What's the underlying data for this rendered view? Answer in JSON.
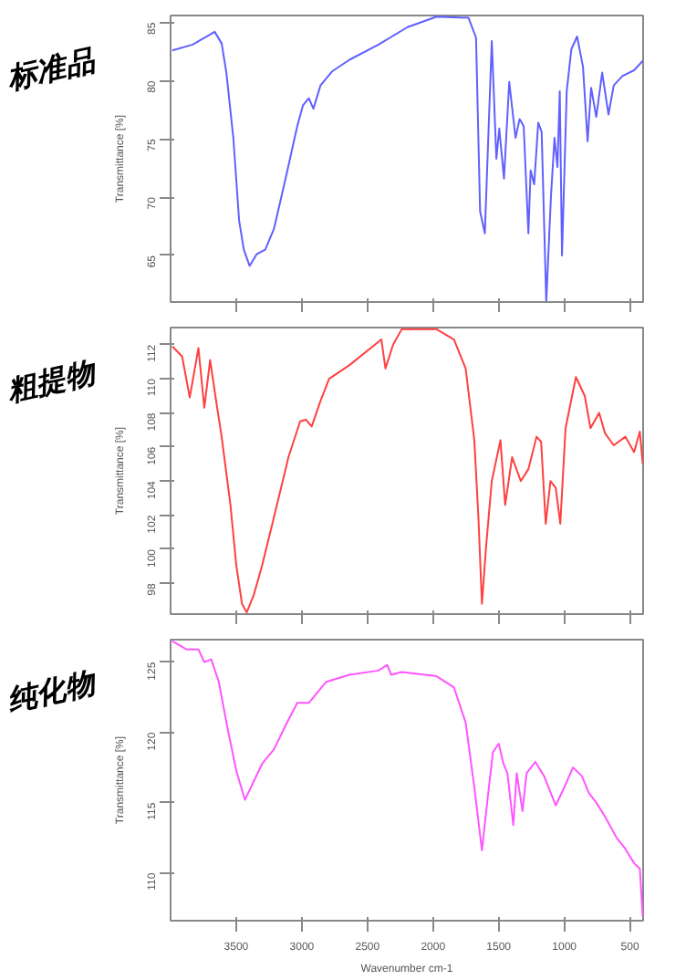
{
  "chart_data": [
    {
      "type": "line",
      "title": "标准品",
      "ylabel": "Transmittance [%]",
      "xlim": [
        4000,
        400
      ],
      "xticks": [
        3500,
        3000,
        2500,
        2000,
        1500,
        1000,
        500
      ],
      "ylim": [
        61,
        85.6
      ],
      "yticks": [
        65,
        70,
        75,
        80,
        85
      ],
      "tick_labels": "y",
      "grid": false,
      "series": [
        {
          "color": "#6060ff",
          "x": [
            3987,
            3832,
            3664,
            3611,
            3575,
            3522,
            3478,
            3442,
            3398,
            3345,
            3279,
            3212,
            3124,
            3035,
            2991,
            2947,
            2912,
            2858,
            2770,
            2637,
            2416,
            2195,
            1973,
            1730,
            1673,
            1642,
            1606,
            1553,
            1518,
            1496,
            1460,
            1420,
            1372,
            1341,
            1310,
            1274,
            1257,
            1230,
            1199,
            1173,
            1138,
            1102,
            1075,
            1053,
            1035,
            1018,
            982,
            947,
            903,
            858,
            823,
            796,
            757,
            712,
            664,
            624,
            558,
            469,
            403
          ],
          "values": [
            82.6,
            83.1,
            84.2,
            83.2,
            80.7,
            75.1,
            68.0,
            65.5,
            64.1,
            65.1,
            65.5,
            67.3,
            71.6,
            76.1,
            77.9,
            78.5,
            77.6,
            79.6,
            80.8,
            81.8,
            83.1,
            84.6,
            85.5,
            85.4,
            83.7,
            68.8,
            66.9,
            83.4,
            73.3,
            75.9,
            71.6,
            79.9,
            75.1,
            76.7,
            76.1,
            66.9,
            72.3,
            71.1,
            76.4,
            75.6,
            61.0,
            70.1,
            75.1,
            72.6,
            79.1,
            65.0,
            79.1,
            82.7,
            83.8,
            81.2,
            74.8,
            79.4,
            76.9,
            80.7,
            77.1,
            79.6,
            80.4,
            80.9,
            81.7
          ]
        }
      ]
    },
    {
      "type": "line",
      "title": "粗提物",
      "ylabel": "Transmittance [%]",
      "xlim": [
        4000,
        400
      ],
      "xticks": [
        3500,
        3000,
        2500,
        2000,
        1500,
        1000,
        500
      ],
      "ylim": [
        96.2,
        113
      ],
      "yticks": [
        98,
        100,
        102,
        104,
        106,
        108,
        110,
        112
      ],
      "tick_labels": "y",
      "grid": false,
      "series": [
        {
          "color": "#ff4040",
          "x": [
            3987,
            3912,
            3854,
            3788,
            3743,
            3699,
            3655,
            3611,
            3544,
            3500,
            3456,
            3420,
            3367,
            3301,
            3212,
            3102,
            3013,
            2969,
            2925,
            2858,
            2792,
            2637,
            2394,
            2363,
            2305,
            2239,
            1973,
            1841,
            1752,
            1686,
            1655,
            1628,
            1597,
            1553,
            1487,
            1451,
            1398,
            1332,
            1274,
            1212,
            1177,
            1142,
            1106,
            1066,
            1031,
            991,
            912,
            845,
            801,
            735,
            690,
            624,
            535,
            469,
            425,
            403
          ],
          "values": [
            111.9,
            111.3,
            108.9,
            111.8,
            108.3,
            111.1,
            108.8,
            106.6,
            102.6,
            99.1,
            96.8,
            96.3,
            97.3,
            99.1,
            101.9,
            105.4,
            107.5,
            107.6,
            107.2,
            108.7,
            110.0,
            110.8,
            112.3,
            110.6,
            112.0,
            112.9,
            112.9,
            112.3,
            110.6,
            106.4,
            101.9,
            96.8,
            100.1,
            104.0,
            106.4,
            102.6,
            105.4,
            104.0,
            104.7,
            106.6,
            106.3,
            101.5,
            104.0,
            103.6,
            101.5,
            107.1,
            110.1,
            109.0,
            107.1,
            108.0,
            106.8,
            106.1,
            106.6,
            105.7,
            106.9,
            105.0
          ]
        }
      ]
    },
    {
      "type": "line",
      "title": "纯化物",
      "xlabel": "Wavenumber cm-1",
      "ylabel": "Transmittance [%]",
      "xlim": [
        4000,
        400
      ],
      "xticks": [
        3500,
        3000,
        2500,
        2000,
        1500,
        1000,
        500
      ],
      "ylim": [
        106.6,
        126.6
      ],
      "yticks": [
        110,
        115,
        120,
        125
      ],
      "grid": false,
      "series": [
        {
          "color": "#ff55ff",
          "x": [
            3987,
            3876,
            3788,
            3743,
            3690,
            3633,
            3566,
            3500,
            3434,
            3367,
            3301,
            3212,
            3124,
            3035,
            2947,
            2814,
            2637,
            2416,
            2350,
            2319,
            2239,
            1973,
            1841,
            1752,
            1686,
            1628,
            1575,
            1544,
            1500,
            1465,
            1434,
            1389,
            1363,
            1319,
            1288,
            1221,
            1155,
            1066,
            1000,
            934,
            867,
            814,
            757,
            690,
            602,
            535,
            469,
            425,
            403
          ],
          "values": [
            126.5,
            125.9,
            125.9,
            125.0,
            125.2,
            123.6,
            120.3,
            117.3,
            115.2,
            116.5,
            117.8,
            118.8,
            120.5,
            122.1,
            122.1,
            123.6,
            124.1,
            124.4,
            124.8,
            124.1,
            124.3,
            124.0,
            123.2,
            120.7,
            116.1,
            111.6,
            116.1,
            118.6,
            119.2,
            117.8,
            117.1,
            113.4,
            117.1,
            114.4,
            117.1,
            117.9,
            116.9,
            114.8,
            116.1,
            117.5,
            116.9,
            115.7,
            115.0,
            114.0,
            112.5,
            111.7,
            110.7,
            110.3,
            106.9
          ]
        }
      ]
    }
  ]
}
